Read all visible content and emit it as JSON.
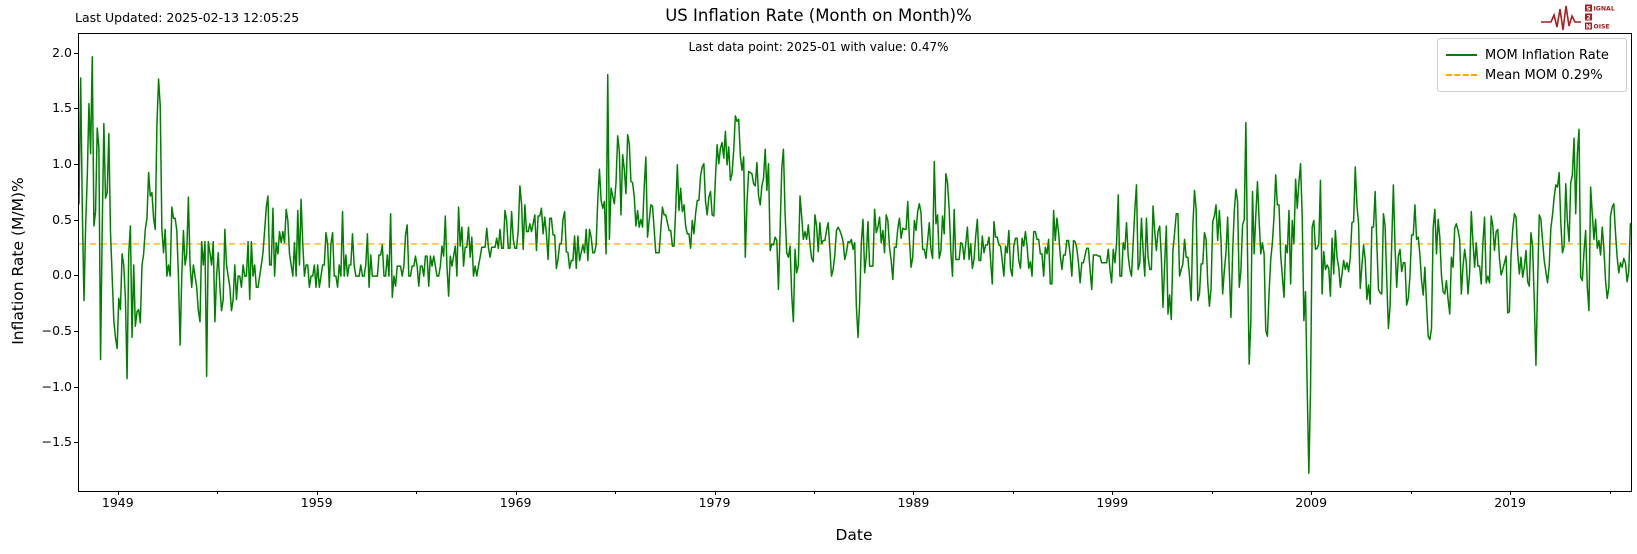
{
  "header": {
    "last_updated": "Last Updated: 2025-02-13 12:05:25",
    "title": "US Inflation Rate (Month on Month)%",
    "subtitle": "Last data point: 2025-01 with value: 0.47%"
  },
  "logo": {
    "word1": "IGNAL",
    "word1_initial": "S",
    "word2_initial": "2",
    "word3": "OISE",
    "word3_initial": "N",
    "color": "#A62021"
  },
  "legend": {
    "entries": [
      {
        "label": "MOM Inflation Rate",
        "color": "#008000",
        "style": "solid"
      },
      {
        "label": "Mean MOM 0.29%",
        "color": "#FFA500",
        "style": "dashed"
      }
    ]
  },
  "chart_data": {
    "type": "line",
    "title": "US Inflation Rate (Month on Month)%",
    "subtitle": "Last data point: 2025-01 with value: 0.47%",
    "xlabel": "Date",
    "ylabel": "Inflation Rate (M/M)%",
    "grid": false,
    "legend_position": "upper right",
    "line_color": "#008000",
    "mean_line": {
      "value": 0.29,
      "color": "#FFA500",
      "style": "dashed",
      "label": "Mean MOM 0.29%"
    },
    "last_point": {
      "date": "2025-01",
      "value": 0.47
    },
    "xlim": [
      1947.0,
      2025.03
    ],
    "ylim": [
      -1.93,
      2.175
    ],
    "x_major_ticks": [
      1949,
      1959,
      1969,
      1979,
      1989,
      1999,
      2009,
      2019
    ],
    "x_minor_ticks": [
      1954,
      1964,
      1974,
      1984,
      1994,
      2004,
      2014,
      2024
    ],
    "y_ticks": [
      {
        "label": "2.0",
        "value": 2.0
      },
      {
        "label": "1.5",
        "value": 1.5
      },
      {
        "label": "1.0",
        "value": 1.0
      },
      {
        "label": "0.5",
        "value": 0.5
      },
      {
        "label": "0.0",
        "value": 0.0
      },
      {
        "label": "−0.5",
        "value": -0.5
      },
      {
        "label": "−1.0",
        "value": -1.0
      },
      {
        "label": "−1.5",
        "value": -1.5
      }
    ],
    "series_name": "MOM Inflation Rate",
    "start": "1947-01",
    "frequency": "monthly",
    "values_by_year": [
      [
        0.65,
        1.78,
        0.6,
        -0.22,
        0.45,
        0.9,
        1.55,
        1.1,
        1.97,
        0.45,
        0.58,
        1.33
      ],
      [
        1.15,
        -0.75,
        0.42,
        1.37,
        0.7,
        0.75,
        1.28,
        0.4,
        0.0,
        -0.4,
        -0.55,
        -0.65
      ],
      [
        -0.2,
        -0.3,
        0.2,
        0.1,
        -0.2,
        -0.92,
        0.2,
        0.45,
        -0.55,
        0.1,
        -0.45,
        -0.32
      ],
      [
        -0.3,
        -0.42,
        0.1,
        0.2,
        0.42,
        0.52,
        0.93,
        0.72,
        0.75,
        0.52,
        0.42,
        1.35
      ],
      [
        1.77,
        1.53,
        0.42,
        0.21,
        0.42,
        0.0,
        0.1,
        0.0,
        0.62,
        0.52,
        0.52,
        0.41
      ],
      [
        0.0,
        -0.62,
        0.0,
        0.41,
        0.1,
        0.2,
        0.71,
        0.1,
        -0.1,
        0.1,
        0.0,
        -0.1
      ],
      [
        -0.31,
        -0.41,
        0.31,
        0.1,
        0.31,
        -0.9,
        0.31,
        0.21,
        0.1,
        0.31,
        -0.41,
        0.0
      ],
      [
        0.21,
        -0.1,
        -0.31,
        -0.21,
        0.42,
        0.1,
        0.0,
        -0.1,
        -0.31,
        -0.21,
        0.1,
        -0.21
      ],
      [
        0.0,
        0.0,
        -0.1,
        0.1,
        0.0,
        0.0,
        0.31,
        -0.21,
        0.31,
        0.0,
        0.1,
        -0.1
      ],
      [
        -0.1,
        0.0,
        0.1,
        0.21,
        0.41,
        0.62,
        0.72,
        0.1,
        0.1,
        0.61,
        0.0,
        0.3
      ],
      [
        0.2,
        0.4,
        0.3,
        0.4,
        0.3,
        0.6,
        0.5,
        0.2,
        0.1,
        0.0,
        0.3,
        0.0
      ],
      [
        0.59,
        0.1,
        0.69,
        0.29,
        0.0,
        0.1,
        0.1,
        -0.1,
        0.0,
        0.0,
        0.1,
        -0.1
      ],
      [
        0.1,
        -0.1,
        0.0,
        0.1,
        0.1,
        0.39,
        0.29,
        -0.1,
        0.29,
        0.39,
        0.0,
        0.0
      ],
      [
        -0.1,
        0.1,
        0.0,
        0.58,
        0.0,
        0.19,
        0.0,
        0.1,
        0.1,
        0.38,
        0.1,
        0.0
      ],
      [
        0.0,
        0.0,
        0.1,
        0.0,
        0.0,
        0.1,
        0.38,
        -0.1,
        0.19,
        0.0,
        0.0,
        0.0
      ],
      [
        0.0,
        0.19,
        0.19,
        0.28,
        0.0,
        0.0,
        0.19,
        0.0,
        0.56,
        -0.19,
        0.0,
        -0.09
      ],
      [
        0.09,
        0.09,
        0.09,
        0.0,
        0.09,
        0.37,
        0.46,
        0.0,
        0.0,
        0.09,
        0.09,
        0.18
      ],
      [
        0.09,
        -0.09,
        0.09,
        0.09,
        0.0,
        0.18,
        0.18,
        -0.09,
        0.18,
        0.09,
        0.18,
        0.09
      ],
      [
        0.0,
        0.0,
        0.09,
        0.27,
        0.18,
        0.54,
        0.09,
        -0.18,
        0.18,
        0.09,
        0.18,
        0.27
      ],
      [
        0.0,
        0.62,
        0.27,
        0.44,
        0.09,
        0.26,
        0.26,
        0.44,
        0.17,
        0.35,
        0.0,
        0.09
      ],
      [
        0.0,
        0.09,
        0.17,
        0.26,
        0.26,
        0.26,
        0.43,
        0.26,
        0.17,
        0.26,
        0.26,
        0.26
      ],
      [
        0.34,
        0.25,
        0.42,
        0.25,
        0.25,
        0.59,
        0.5,
        0.25,
        0.25,
        0.58,
        0.33,
        0.25
      ],
      [
        0.25,
        0.41,
        0.81,
        0.65,
        0.24,
        0.64,
        0.4,
        0.4,
        0.47,
        0.4,
        0.47,
        0.55
      ],
      [
        0.23,
        0.54,
        0.54,
        0.61,
        0.38,
        0.53,
        0.38,
        0.15,
        0.52,
        0.52,
        0.37,
        0.37
      ],
      [
        0.07,
        0.15,
        0.29,
        0.29,
        0.51,
        0.58,
        0.22,
        0.21,
        0.07,
        0.14,
        0.14,
        0.36
      ],
      [
        0.07,
        0.36,
        0.14,
        0.21,
        0.28,
        0.21,
        0.42,
        0.14,
        0.42,
        0.35,
        0.21,
        0.21
      ],
      [
        0.28,
        0.69,
        0.96,
        0.68,
        0.61,
        0.67,
        0.2,
        1.81,
        0.33,
        0.79,
        0.72,
        0.65
      ],
      [
        0.84,
        1.26,
        1.12,
        0.55,
        1.09,
        0.96,
        0.74,
        1.27,
        1.19,
        0.85,
        0.84,
        0.71
      ],
      [
        0.45,
        0.59,
        0.44,
        0.51,
        0.44,
        0.8,
        1.07,
        0.35,
        0.5,
        0.64,
        0.63,
        0.42
      ],
      [
        0.21,
        0.21,
        0.21,
        0.42,
        0.62,
        0.55,
        0.55,
        0.48,
        0.41,
        0.41,
        0.27,
        0.27
      ],
      [
        0.6,
        1.0,
        0.59,
        0.79,
        0.58,
        0.64,
        0.45,
        0.38,
        0.38,
        0.25,
        0.5,
        0.38
      ],
      [
        0.56,
        0.68,
        0.68,
        0.9,
        0.98,
        1.01,
        0.67,
        0.55,
        0.71,
        0.76,
        0.55,
        0.54
      ],
      [
        0.89,
        1.18,
        1.01,
        1.15,
        1.2,
        1.06,
        1.3,
        1.0,
        1.16,
        0.86,
        0.92,
        1.13
      ],
      [
        1.44,
        1.39,
        1.41,
        1.08,
        0.95,
        1.07,
        0.17,
        0.66,
        0.94,
        0.93,
        0.92,
        0.83
      ],
      [
        0.81,
        1.02,
        0.72,
        0.64,
        0.81,
        0.88,
        1.14,
        0.77,
        1.01,
        0.23,
        0.29,
        0.28
      ],
      [
        0.35,
        0.32,
        -0.12,
        0.41,
        0.97,
        1.14,
        0.56,
        0.21,
        0.17,
        0.27,
        -0.17,
        -0.41
      ],
      [
        0.24,
        0.03,
        0.1,
        0.72,
        0.54,
        0.33,
        0.4,
        0.33,
        0.46,
        0.29,
        0.16,
        0.13
      ],
      [
        0.55,
        0.45,
        0.22,
        0.48,
        0.29,
        0.32,
        0.32,
        0.41,
        0.48,
        0.25,
        0.0,
        0.06
      ],
      [
        0.19,
        0.41,
        0.44,
        0.41,
        0.37,
        0.31,
        0.15,
        0.21,
        0.31,
        0.3,
        0.33,
        0.24
      ],
      [
        0.3,
        -0.27,
        -0.55,
        -0.24,
        0.3,
        0.51,
        0.03,
        0.18,
        0.49,
        0.09,
        0.09,
        0.09
      ],
      [
        0.6,
        0.39,
        0.44,
        0.53,
        0.3,
        0.41,
        0.21,
        0.55,
        0.5,
        0.26,
        0.14,
        -0.03
      ],
      [
        0.26,
        0.26,
        0.43,
        0.52,
        0.34,
        0.43,
        0.42,
        0.42,
        0.67,
        0.33,
        0.08,
        0.17
      ],
      [
        0.5,
        0.41,
        0.58,
        0.65,
        0.57,
        0.24,
        0.24,
        0.16,
        0.32,
        0.48,
        0.24,
        0.16
      ],
      [
        1.03,
        0.47,
        0.55,
        0.16,
        0.23,
        0.54,
        0.38,
        0.92,
        0.84,
        0.6,
        0.22,
        0.0
      ],
      [
        0.6,
        0.15,
        0.15,
        0.15,
        0.3,
        0.29,
        0.15,
        0.29,
        0.44,
        0.15,
        0.29,
        0.07
      ],
      [
        0.15,
        0.36,
        0.51,
        0.14,
        0.14,
        0.36,
        0.21,
        0.28,
        0.28,
        0.35,
        0.14,
        -0.07
      ],
      [
        0.49,
        0.35,
        0.35,
        0.28,
        0.27,
        0.14,
        0.0,
        0.27,
        0.21,
        0.41,
        0.07,
        0.0
      ],
      [
        0.27,
        0.34,
        0.34,
        0.14,
        0.07,
        0.34,
        0.27,
        0.4,
        0.27,
        0.07,
        0.13,
        0.0
      ],
      [
        0.4,
        0.4,
        0.33,
        0.33,
        0.2,
        0.2,
        0.0,
        0.26,
        0.2,
        0.33,
        -0.07,
        -0.07
      ],
      [
        0.59,
        0.32,
        0.52,
        0.39,
        0.19,
        0.06,
        0.19,
        0.19,
        0.32,
        0.32,
        0.19,
        0.0
      ],
      [
        0.32,
        0.31,
        0.25,
        0.12,
        -0.06,
        0.12,
        0.12,
        0.19,
        0.25,
        0.25,
        0.06,
        -0.12
      ],
      [
        0.19,
        0.19,
        0.19,
        0.18,
        0.18,
        0.12,
        0.12,
        0.12,
        0.12,
        0.24,
        0.06,
        -0.06
      ],
      [
        0.24,
        0.12,
        0.3,
        0.73,
        0.0,
        0.0,
        0.3,
        0.24,
        0.48,
        0.18,
        0.06,
        0.0
      ],
      [
        0.3,
        0.59,
        0.82,
        0.06,
        0.12,
        0.52,
        0.23,
        0.0,
        0.52,
        0.17,
        0.06,
        0.06
      ],
      [
        0.63,
        0.4,
        0.23,
        0.4,
        0.45,
        0.17,
        -0.28,
        0.11,
        0.45,
        -0.34,
        -0.17,
        -0.39
      ],
      [
        0.23,
        0.39,
        0.56,
        0.56,
        0.0,
        0.06,
        0.11,
        0.33,
        0.17,
        0.17,
        0.0,
        -0.22
      ],
      [
        0.44,
        0.77,
        0.6,
        -0.22,
        -0.16,
        0.11,
        0.11,
        0.39,
        0.33,
        -0.06,
        -0.27,
        -0.11
      ],
      [
        0.49,
        0.54,
        0.64,
        0.32,
        0.59,
        0.32,
        -0.16,
        0.05,
        0.21,
        0.53,
        0.05,
        -0.37
      ],
      [
        0.21,
        0.58,
        0.78,
        0.67,
        -0.1,
        0.05,
        0.46,
        0.51,
        1.38,
        0.2,
        -0.79,
        -0.41
      ],
      [
        0.76,
        0.2,
        0.55,
        0.85,
        0.5,
        0.2,
        0.3,
        0.2,
        -0.49,
        -0.54,
        -0.15,
        0.15
      ],
      [
        0.3,
        0.54,
        0.91,
        0.64,
        0.64,
        0.19,
        0.0,
        -0.19,
        0.28,
        0.21,
        0.59,
        -0.07
      ],
      [
        0.5,
        0.29,
        0.87,
        0.61,
        0.84,
        1.01,
        0.53,
        -0.4,
        -0.14,
        -1.01,
        -1.77,
        -1.03
      ],
      [
        0.44,
        0.5,
        0.24,
        0.25,
        0.29,
        0.86,
        -0.16,
        0.22,
        0.06,
        0.1,
        0.07,
        -0.18
      ],
      [
        0.34,
        0.02,
        0.41,
        0.17,
        0.08,
        -0.1,
        0.02,
        0.14,
        0.06,
        0.12,
        0.04,
        0.17
      ],
      [
        0.48,
        0.49,
        0.98,
        0.64,
        0.47,
        -0.11,
        0.09,
        0.28,
        0.15,
        -0.21,
        -0.08,
        -0.25
      ],
      [
        0.44,
        0.44,
        0.76,
        0.3,
        -0.12,
        -0.15,
        -0.16,
        0.56,
        0.45,
        -0.04,
        -0.47,
        -0.27
      ],
      [
        0.3,
        0.82,
        0.26,
        -0.1,
        0.18,
        0.24,
        0.04,
        0.12,
        0.12,
        -0.26,
        -0.2,
        0.0
      ],
      [
        0.37,
        0.37,
        0.64,
        0.33,
        0.35,
        0.19,
        -0.04,
        -0.17,
        0.08,
        -0.25,
        -0.54,
        -0.57
      ],
      [
        -0.47,
        0.43,
        0.6,
        0.2,
        0.51,
        0.35,
        0.01,
        -0.14,
        -0.16,
        -0.04,
        -0.21,
        -0.34
      ],
      [
        0.17,
        0.08,
        0.43,
        0.47,
        0.41,
        0.33,
        -0.16,
        0.09,
        0.24,
        0.12,
        -0.16,
        0.03
      ],
      [
        0.58,
        0.31,
        0.08,
        0.3,
        0.09,
        0.09,
        -0.07,
        0.3,
        0.53,
        -0.06,
        0.0,
        -0.06
      ],
      [
        0.54,
        0.45,
        0.23,
        0.4,
        0.42,
        0.16,
        0.01,
        0.06,
        0.12,
        0.18,
        -0.33,
        -0.32
      ],
      [
        0.19,
        0.42,
        0.56,
        0.53,
        0.21,
        0.02,
        0.17,
        -0.01,
        0.08,
        0.23,
        -0.05,
        -0.09
      ],
      [
        0.39,
        0.27,
        -0.22,
        -0.8,
        -0.08,
        0.55,
        0.51,
        0.32,
        0.14,
        0.04,
        -0.06,
        0.09
      ],
      [
        0.43,
        0.55,
        0.71,
        0.82,
        0.8,
        0.93,
        0.48,
        0.21,
        0.27,
        0.83,
        0.49,
        0.31
      ],
      [
        0.84,
        0.91,
        1.24,
        0.56,
        1.1,
        1.32,
        -0.01,
        -0.04,
        0.22,
        0.41,
        -0.1,
        -0.31
      ],
      [
        0.8,
        0.56,
        0.33,
        0.51,
        0.25,
        0.32,
        0.19,
        0.44,
        0.25,
        -0.04,
        -0.2,
        -0.1
      ],
      [
        0.54,
        0.62,
        0.65,
        0.39,
        0.17,
        0.03,
        0.12,
        0.08,
        0.16,
        0.12,
        -0.05,
        0.04
      ],
      [
        0.47
      ]
    ]
  }
}
